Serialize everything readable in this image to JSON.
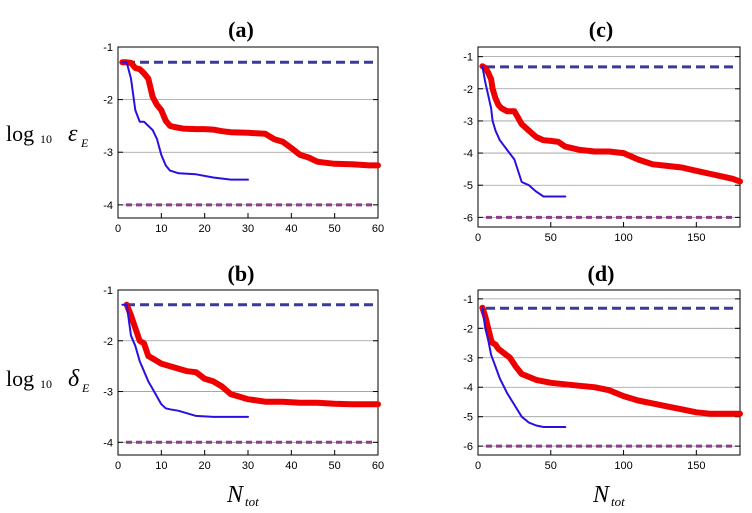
{
  "figure": {
    "ylabel_top": {
      "prefix": "log",
      "sub": "10",
      "symbol": "ε",
      "symbol_sub": "E"
    },
    "ylabel_bottom": {
      "prefix": "log",
      "sub": "10",
      "symbol": "δ",
      "symbol_sub": "E"
    },
    "xlabel": {
      "symbol": "N",
      "sub": "tot"
    }
  },
  "colors": {
    "red": "#ee0000",
    "blue": "#2a10e0",
    "dash_top": "#3a3a9a",
    "dash_bottom": "#8a3f88",
    "grid": "#9a9a9a",
    "axis": "#000000"
  },
  "chart_data": [
    {
      "id": "a",
      "type": "line",
      "title": "(a)",
      "xlim": [
        0,
        60
      ],
      "ylim": [
        -4.25,
        -1.0
      ],
      "xticks": [
        0,
        10,
        20,
        30,
        40,
        50,
        60
      ],
      "xtick_labels": [
        "0",
        "10",
        "20",
        "30",
        "40",
        "50",
        "60"
      ],
      "yticks": [
        -1,
        -2,
        -3,
        -4
      ],
      "ytick_labels": [
        "-1",
        "-2",
        "-3",
        "-4"
      ],
      "hlines": [
        -1.29,
        -4.0
      ],
      "series": [
        {
          "name": "red",
          "x": [
            1,
            2,
            3,
            4,
            5,
            6,
            7,
            8,
            9,
            10,
            11,
            12,
            13,
            15,
            18,
            20,
            22,
            24,
            26,
            30,
            34,
            36,
            38,
            40,
            42,
            44,
            46,
            48,
            50,
            54,
            58,
            60
          ],
          "y": [
            -1.29,
            -1.29,
            -1.3,
            -1.4,
            -1.42,
            -1.5,
            -1.6,
            -1.95,
            -2.1,
            -2.2,
            -2.4,
            -2.5,
            -2.52,
            -2.55,
            -2.56,
            -2.56,
            -2.57,
            -2.6,
            -2.62,
            -2.63,
            -2.65,
            -2.75,
            -2.8,
            -2.92,
            -3.05,
            -3.1,
            -3.18,
            -3.2,
            -3.22,
            -3.23,
            -3.25,
            -3.25
          ]
        },
        {
          "name": "blue",
          "x": [
            1,
            2,
            3,
            4,
            5,
            6,
            7,
            8,
            9,
            10,
            11,
            12,
            14,
            18,
            22,
            26,
            30
          ],
          "y": [
            -1.29,
            -1.29,
            -1.6,
            -2.2,
            -2.42,
            -2.42,
            -2.5,
            -2.58,
            -2.75,
            -3.05,
            -3.25,
            -3.35,
            -3.4,
            -3.42,
            -3.48,
            -3.52,
            -3.52
          ]
        }
      ]
    },
    {
      "id": "c",
      "type": "line",
      "title": "(c)",
      "xlim": [
        0,
        180
      ],
      "ylim": [
        -6.3,
        -0.7
      ],
      "xticks": [
        0,
        50,
        100,
        150
      ],
      "xtick_labels": [
        "0",
        "50",
        "100",
        "150"
      ],
      "yticks": [
        -1,
        -2,
        -3,
        -4,
        -5,
        -6
      ],
      "ytick_labels": [
        "-1",
        "-2",
        "-3",
        "-4",
        "-5",
        "-6"
      ],
      "hlines": [
        -1.32,
        -6.0
      ],
      "series": [
        {
          "name": "red",
          "x": [
            3,
            5,
            7,
            9,
            10,
            12,
            14,
            16,
            20,
            25,
            30,
            35,
            40,
            45,
            50,
            55,
            60,
            70,
            80,
            90,
            100,
            110,
            120,
            130,
            140,
            150,
            160,
            170,
            175,
            178,
            180
          ],
          "y": [
            -1.3,
            -1.35,
            -1.5,
            -1.7,
            -2.0,
            -2.3,
            -2.5,
            -2.6,
            -2.7,
            -2.7,
            -3.1,
            -3.3,
            -3.5,
            -3.6,
            -3.62,
            -3.65,
            -3.8,
            -3.9,
            -3.95,
            -3.95,
            -4.0,
            -4.2,
            -4.35,
            -4.4,
            -4.45,
            -4.55,
            -4.65,
            -4.75,
            -4.8,
            -4.85,
            -4.88
          ]
        },
        {
          "name": "blue",
          "x": [
            3,
            5,
            7,
            9,
            10,
            12,
            15,
            20,
            25,
            30,
            35,
            40,
            45,
            50,
            60
          ],
          "y": [
            -1.3,
            -1.8,
            -2.2,
            -2.6,
            -3.0,
            -3.3,
            -3.6,
            -3.9,
            -4.2,
            -4.9,
            -5.0,
            -5.2,
            -5.35,
            -5.35,
            -5.35
          ]
        }
      ]
    },
    {
      "id": "b",
      "type": "line",
      "title": "(b)",
      "xlim": [
        0,
        60
      ],
      "ylim": [
        -4.25,
        -1.0
      ],
      "xticks": [
        0,
        10,
        20,
        30,
        40,
        50,
        60
      ],
      "xtick_labels": [
        "0",
        "10",
        "20",
        "30",
        "40",
        "50",
        "60"
      ],
      "yticks": [
        -1,
        -2,
        -3,
        -4
      ],
      "ytick_labels": [
        "-1",
        "-2",
        "-3",
        "-4"
      ],
      "hlines": [
        -1.29,
        -4.0
      ],
      "series": [
        {
          "name": "red",
          "x": [
            2,
            3,
            4,
            5,
            6,
            7,
            8,
            9,
            10,
            12,
            14,
            16,
            18,
            20,
            22,
            24,
            26,
            28,
            30,
            34,
            38,
            42,
            46,
            50,
            54,
            58,
            60
          ],
          "y": [
            -1.29,
            -1.5,
            -1.75,
            -2.0,
            -2.05,
            -2.3,
            -2.35,
            -2.4,
            -2.45,
            -2.5,
            -2.55,
            -2.6,
            -2.62,
            -2.75,
            -2.8,
            -2.9,
            -3.05,
            -3.1,
            -3.15,
            -3.2,
            -3.2,
            -3.22,
            -3.22,
            -3.24,
            -3.25,
            -3.25,
            -3.25
          ]
        },
        {
          "name": "blue",
          "x": [
            1,
            2,
            3,
            4,
            5,
            6,
            7,
            8,
            9,
            10,
            11,
            12,
            14,
            18,
            22,
            26,
            30
          ],
          "y": [
            -1.29,
            -1.29,
            -1.9,
            -2.1,
            -2.4,
            -2.6,
            -2.8,
            -2.95,
            -3.1,
            -3.25,
            -3.33,
            -3.35,
            -3.38,
            -3.48,
            -3.5,
            -3.5,
            -3.5
          ]
        }
      ]
    },
    {
      "id": "d",
      "type": "line",
      "title": "(d)",
      "xlim": [
        0,
        180
      ],
      "ylim": [
        -6.3,
        -0.7
      ],
      "xticks": [
        0,
        50,
        100,
        150
      ],
      "xtick_labels": [
        "0",
        "50",
        "100",
        "150"
      ],
      "yticks": [
        -1,
        -2,
        -3,
        -4,
        -5,
        -6
      ],
      "ytick_labels": [
        "-1",
        "-2",
        "-3",
        "-4",
        "-5",
        "-6"
      ],
      "hlines": [
        -1.32,
        -6.0
      ],
      "series": [
        {
          "name": "red",
          "x": [
            3,
            5,
            7,
            9,
            10,
            12,
            14,
            18,
            22,
            26,
            30,
            35,
            40,
            50,
            60,
            70,
            80,
            90,
            100,
            110,
            120,
            130,
            140,
            150,
            160,
            170,
            180
          ],
          "y": [
            -1.3,
            -1.6,
            -2.0,
            -2.4,
            -2.5,
            -2.55,
            -2.7,
            -2.85,
            -3.0,
            -3.3,
            -3.55,
            -3.65,
            -3.75,
            -3.85,
            -3.9,
            -3.95,
            -4.0,
            -4.1,
            -4.3,
            -4.45,
            -4.55,
            -4.65,
            -4.75,
            -4.85,
            -4.9,
            -4.9,
            -4.9
          ]
        },
        {
          "name": "blue",
          "x": [
            3,
            5,
            7,
            9,
            12,
            15,
            20,
            25,
            30,
            35,
            40,
            45,
            50,
            60
          ],
          "y": [
            -1.3,
            -2.0,
            -2.4,
            -2.9,
            -3.3,
            -3.7,
            -4.2,
            -4.6,
            -5.0,
            -5.2,
            -5.3,
            -5.35,
            -5.35,
            -5.35
          ]
        }
      ]
    }
  ]
}
